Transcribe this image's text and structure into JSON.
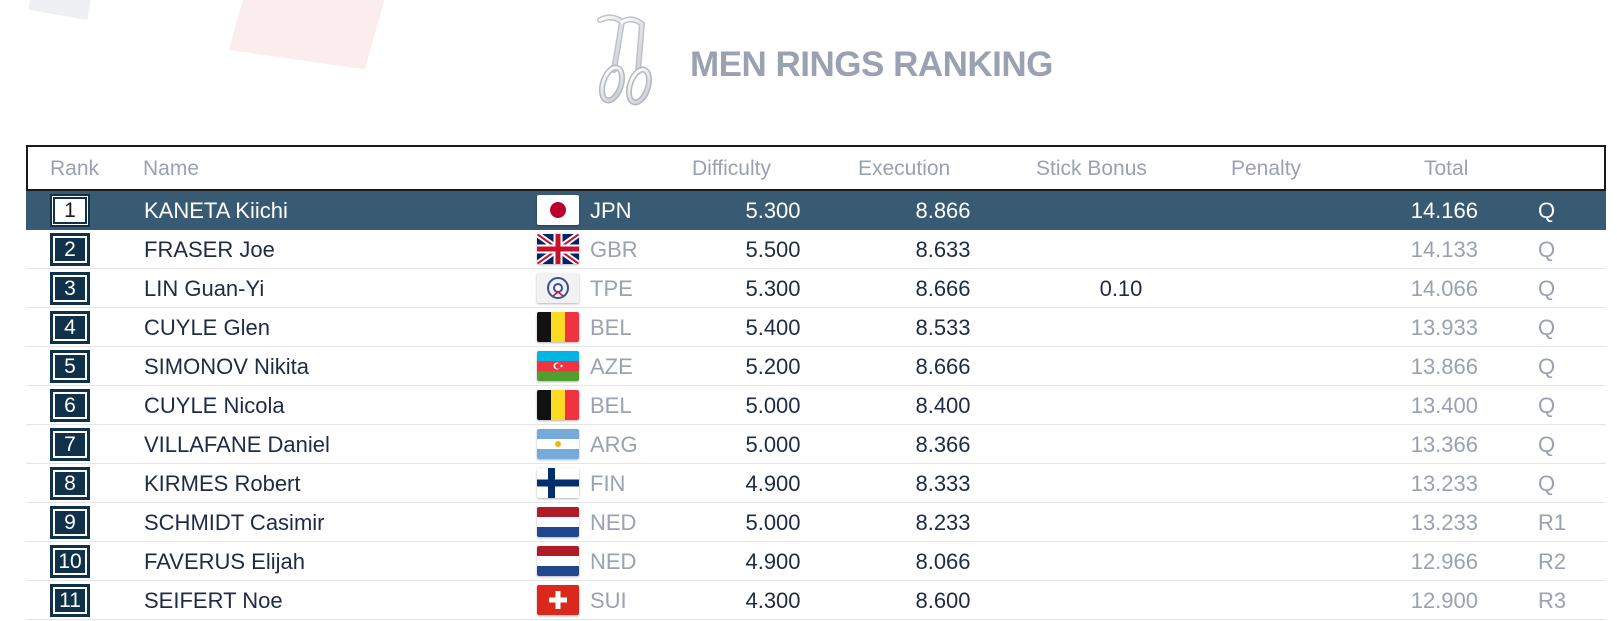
{
  "title": "MEN RINGS RANKING",
  "headers": {
    "rank": "Rank",
    "name": "Name",
    "difficulty": "Difficulty",
    "execution": "Execution",
    "stick_bonus": "Stick Bonus",
    "penalty": "Penalty",
    "total": "Total"
  },
  "rows": [
    {
      "rank": "1",
      "name": "KANETA Kiichi",
      "flag": "japan-flag-icon",
      "noc": "JPN",
      "difficulty": "5.300",
      "execution": "8.866",
      "stick_bonus": "",
      "penalty": "",
      "total": "14.166",
      "qual": "Q"
    },
    {
      "rank": "2",
      "name": "FRASER Joe",
      "flag": "uk-flag-icon",
      "noc": "GBR",
      "difficulty": "5.500",
      "execution": "8.633",
      "stick_bonus": "",
      "penalty": "",
      "total": "14.133",
      "qual": "Q"
    },
    {
      "rank": "3",
      "name": "LIN Guan-Yi",
      "flag": "chinese-taipei-flag-icon",
      "noc": "TPE",
      "difficulty": "5.300",
      "execution": "8.666",
      "stick_bonus": "0.10",
      "penalty": "",
      "total": "14.066",
      "qual": "Q"
    },
    {
      "rank": "4",
      "name": "CUYLE Glen",
      "flag": "belgium-flag-icon",
      "noc": "BEL",
      "difficulty": "5.400",
      "execution": "8.533",
      "stick_bonus": "",
      "penalty": "",
      "total": "13.933",
      "qual": "Q"
    },
    {
      "rank": "5",
      "name": "SIMONOV Nikita",
      "flag": "azerbaijan-flag-icon",
      "noc": "AZE",
      "difficulty": "5.200",
      "execution": "8.666",
      "stick_bonus": "",
      "penalty": "",
      "total": "13.866",
      "qual": "Q"
    },
    {
      "rank": "6",
      "name": "CUYLE Nicola",
      "flag": "belgium-flag-icon",
      "noc": "BEL",
      "difficulty": "5.000",
      "execution": "8.400",
      "stick_bonus": "",
      "penalty": "",
      "total": "13.400",
      "qual": "Q"
    },
    {
      "rank": "7",
      "name": "VILLAFANE Daniel",
      "flag": "argentina-flag-icon",
      "noc": "ARG",
      "difficulty": "5.000",
      "execution": "8.366",
      "stick_bonus": "",
      "penalty": "",
      "total": "13.366",
      "qual": "Q"
    },
    {
      "rank": "8",
      "name": "KIRMES Robert",
      "flag": "finland-flag-icon",
      "noc": "FIN",
      "difficulty": "4.900",
      "execution": "8.333",
      "stick_bonus": "",
      "penalty": "",
      "total": "13.233",
      "qual": "Q"
    },
    {
      "rank": "9",
      "name": "SCHMIDT Casimir",
      "flag": "netherlands-flag-icon",
      "noc": "NED",
      "difficulty": "5.000",
      "execution": "8.233",
      "stick_bonus": "",
      "penalty": "",
      "total": "13.233",
      "qual": "R1"
    },
    {
      "rank": "10",
      "name": "FAVERUS Elijah",
      "flag": "netherlands-flag-icon",
      "noc": "NED",
      "difficulty": "4.900",
      "execution": "8.066",
      "stick_bonus": "",
      "penalty": "",
      "total": "12.966",
      "qual": "R2"
    },
    {
      "rank": "11",
      "name": "SEIFERT Noe",
      "flag": "switzerland-flag-icon",
      "noc": "SUI",
      "difficulty": "4.300",
      "execution": "8.600",
      "stick_bonus": "",
      "penalty": "",
      "total": "12.900",
      "qual": "R3"
    }
  ],
  "colors": {
    "highlight_row": "#385a72",
    "rank_box": "#0f3149",
    "muted_text": "#9aa1b0",
    "dark_text": "#1f2a44"
  }
}
